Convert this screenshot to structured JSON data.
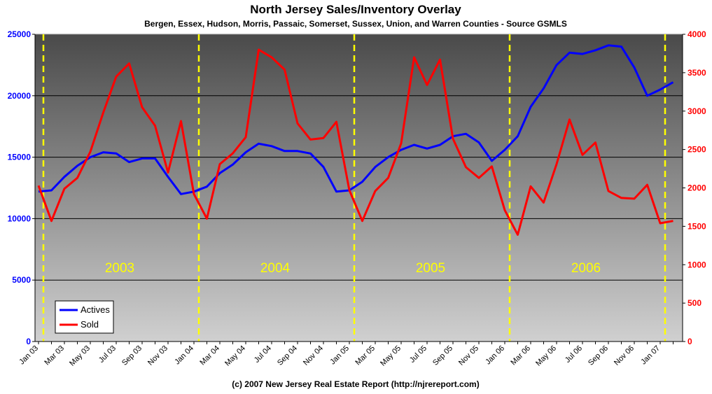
{
  "chart_data": {
    "type": "line",
    "title": "North Jersey Sales/Inventory Overlay",
    "subtitle": "Bergen, Essex, Hudson, Morris, Passaic, Somerset, Sussex, Union, and Warren Counties - Source GSMLS",
    "footer": "(c) 2007 New Jersey Real Estate Report (http://njrereport.com)",
    "x": [
      "2003-01",
      "2003-02",
      "2003-03",
      "2003-04",
      "2003-05",
      "2003-06",
      "2003-07",
      "2003-08",
      "2003-09",
      "2003-10",
      "2003-11",
      "2003-12",
      "2004-01",
      "2004-02",
      "2004-03",
      "2004-04",
      "2004-05",
      "2004-06",
      "2004-07",
      "2004-08",
      "2004-09",
      "2004-10",
      "2004-11",
      "2004-12",
      "2005-01",
      "2005-02",
      "2005-03",
      "2005-04",
      "2005-05",
      "2005-06",
      "2005-07",
      "2005-08",
      "2005-09",
      "2005-10",
      "2005-11",
      "2005-12",
      "2006-01",
      "2006-02",
      "2006-03",
      "2006-04",
      "2006-05",
      "2006-06",
      "2006-07",
      "2006-08",
      "2006-09",
      "2006-10",
      "2006-11",
      "2006-12",
      "2007-01",
      "2007-02"
    ],
    "x_tick_labels": [
      "Jan 03",
      "Mar 03",
      "May 03",
      "Jul 03",
      "Sep 03",
      "Nov 03",
      "Jan 04",
      "Mar 04",
      "May 04",
      "Jul 04",
      "Sep 04",
      "Nov 04",
      "Jan 05",
      "Mar 05",
      "May 05",
      "Jul 05",
      "Sep 05",
      "Nov 05",
      "Jan 06",
      "Mar 06",
      "May 06",
      "Jul 06",
      "Sep 06",
      "Nov 06",
      "Jan 07"
    ],
    "y_left": {
      "range": [
        0,
        25000
      ],
      "ticks": [
        0,
        5000,
        10000,
        15000,
        20000,
        25000
      ],
      "color": "#0000ff"
    },
    "y_right": {
      "range": [
        0,
        4000
      ],
      "ticks": [
        0,
        500,
        1000,
        1500,
        2000,
        2500,
        3000,
        3500,
        4000
      ],
      "color": "#ff0000"
    },
    "year_dividers": [
      "2003-01",
      "2004-01",
      "2005-01",
      "2006-01",
      "2007-01"
    ],
    "year_labels": [
      {
        "text": "2003",
        "x": "2003-07"
      },
      {
        "text": "2004",
        "x": "2004-07"
      },
      {
        "text": "2005",
        "x": "2005-07"
      },
      {
        "text": "2006",
        "x": "2006-07"
      }
    ],
    "series": [
      {
        "name": "Actives",
        "axis": "left",
        "color": "#0000ff",
        "values": [
          12200,
          12300,
          13400,
          14300,
          15000,
          15400,
          15300,
          14600,
          14900,
          14900,
          13400,
          12000,
          12200,
          12600,
          13700,
          14400,
          15400,
          16100,
          15900,
          15500,
          15500,
          15300,
          14200,
          12200,
          12300,
          13000,
          14200,
          15000,
          15600,
          16000,
          15700,
          16000,
          16700,
          16900,
          16200,
          14700,
          15600,
          16700,
          19100,
          20600,
          22500,
          23500,
          23400,
          23700,
          24100,
          24000,
          22300,
          20000,
          20500,
          21100
        ]
      },
      {
        "name": "Sold",
        "axis": "right",
        "color": "#ff0000",
        "values": [
          2030,
          1570,
          1990,
          2130,
          2470,
          2980,
          3450,
          3620,
          3050,
          2810,
          2200,
          2870,
          1920,
          1600,
          2310,
          2450,
          2660,
          3800,
          3700,
          3540,
          2840,
          2630,
          2650,
          2860,
          1970,
          1570,
          1960,
          2130,
          2580,
          3700,
          3340,
          3670,
          2640,
          2270,
          2130,
          2280,
          1710,
          1390,
          2020,
          1810,
          2310,
          2890,
          2430,
          2590,
          1960,
          1870,
          1860,
          2040,
          1540,
          1570
        ]
      }
    ],
    "legend": {
      "position": "bottom-left",
      "entries": [
        "Actives",
        "Sold"
      ]
    },
    "grid": true
  }
}
